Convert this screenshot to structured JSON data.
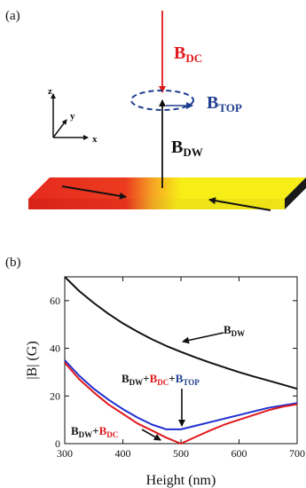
{
  "panel_a": {
    "label": "(a)",
    "field_labels": {
      "dc": {
        "base": "B",
        "sub": "DC",
        "color": "#e0191c"
      },
      "top": {
        "base": "B",
        "sub": "TOP",
        "color": "#1f3f8f"
      },
      "dw": {
        "base": "B",
        "sub": "DW",
        "color": "#111111"
      }
    },
    "axes": {
      "x": "x",
      "y": "y",
      "z": "z"
    },
    "colors": {
      "strip_left": "#e52a1e",
      "strip_right": "#f8ee17",
      "wall": "#f5a623"
    }
  },
  "panel_b": {
    "label": "(b)",
    "annotations": {
      "dw": [
        {
          "t": "B",
          "c": "#111111"
        },
        {
          "t": "DW",
          "c": "#111111",
          "sub": true
        }
      ],
      "sum_top": [
        {
          "t": "B",
          "c": "#111111"
        },
        {
          "t": "DW",
          "c": "#111111",
          "sub": true
        },
        {
          "t": "+",
          "c": "#111111"
        },
        {
          "t": "B",
          "c": "#e0191c"
        },
        {
          "t": "DC",
          "c": "#e0191c",
          "sub": true
        },
        {
          "t": "+",
          "c": "#111111"
        },
        {
          "t": "B",
          "c": "#1f3f8f"
        },
        {
          "t": "TOP",
          "c": "#1f3f8f",
          "sub": true
        }
      ],
      "sum_dc": [
        {
          "t": "B",
          "c": "#111111"
        },
        {
          "t": "DW",
          "c": "#111111",
          "sub": true
        },
        {
          "t": "+",
          "c": "#111111"
        },
        {
          "t": "B",
          "c": "#e0191c"
        },
        {
          "t": "DC",
          "c": "#e0191c",
          "sub": true
        }
      ]
    }
  },
  "chart_data": {
    "type": "line",
    "xlabel": "Height (nm)",
    "ylabel": "|B| (G)",
    "xlim": [
      300,
      700
    ],
    "ylim": [
      0,
      70
    ],
    "xticks": [
      300,
      400,
      500,
      600,
      700
    ],
    "yticks": [
      0,
      20,
      40,
      60
    ],
    "grid": false,
    "series": [
      {
        "color": "#111111",
        "x": [
          300,
          325,
          350,
          375,
          400,
          425,
          450,
          475,
          500,
          525,
          550,
          575,
          600,
          625,
          650,
          675,
          700
        ],
        "values": [
          70.0,
          64.0,
          59.0,
          54.5,
          50.5,
          47.0,
          43.8,
          41.0,
          38.5,
          36.2,
          34.0,
          32.0,
          30.0,
          28.2,
          26.5,
          24.8,
          23.0
        ]
      },
      {
        "color": "#1f2fd0",
        "x": [
          300,
          325,
          350,
          375,
          400,
          425,
          450,
          475,
          500,
          525,
          550,
          575,
          600,
          625,
          650,
          675,
          700
        ],
        "values": [
          35.0,
          28.5,
          23.0,
          18.5,
          14.5,
          11.0,
          8.0,
          6.0,
          6.0,
          7.5,
          9.0,
          10.5,
          12.0,
          13.5,
          15.0,
          16.0,
          17.0
        ]
      },
      {
        "color": "#e0191c",
        "x": [
          300,
          325,
          350,
          375,
          400,
          425,
          450,
          475,
          500,
          525,
          550,
          575,
          600,
          625,
          650,
          675,
          700
        ],
        "values": [
          34.0,
          27.0,
          21.5,
          16.5,
          12.5,
          8.5,
          5.5,
          2.5,
          0.0,
          2.8,
          5.5,
          8.0,
          10.0,
          12.0,
          14.0,
          15.5,
          16.5
        ]
      }
    ]
  }
}
